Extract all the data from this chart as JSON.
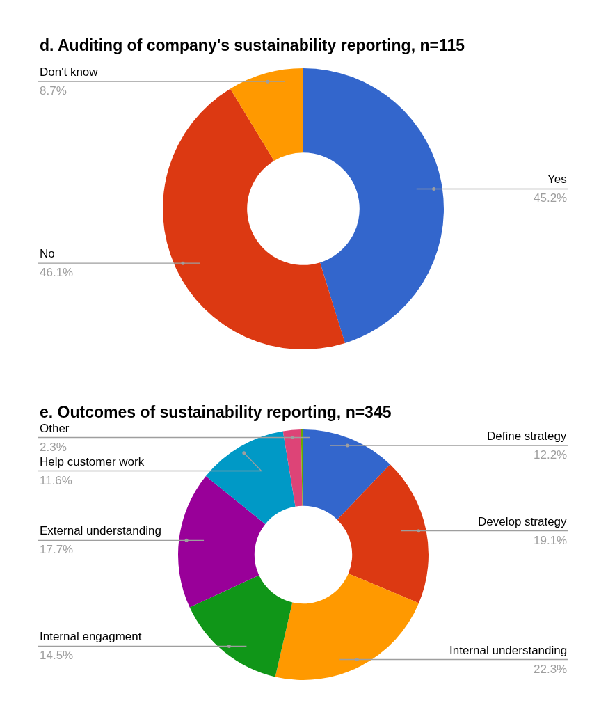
{
  "chart_data": [
    {
      "type": "donut",
      "title": "d. Auditing of company's sustainability reporting, n=115",
      "categories": [
        "Yes",
        "No",
        "Don't know"
      ],
      "values": [
        45.2,
        46.1,
        8.7
      ],
      "value_labels": [
        "45.2%",
        "46.1%",
        "8.7%"
      ],
      "colors": [
        "#3366cc",
        "#dc3912",
        "#ff9900"
      ]
    },
    {
      "type": "donut",
      "title": "e. Outcomes of sustainability reporting, n=345",
      "categories": [
        "Define strategy",
        "Develop strategy",
        "Internal understanding",
        "Internal engagment",
        "External understanding",
        "Help customer work",
        "Other",
        null
      ],
      "values": [
        12.2,
        19.1,
        22.3,
        14.5,
        17.7,
        11.6,
        2.3,
        0.3
      ],
      "value_labels": [
        "12.2%",
        "19.1%",
        "22.3%",
        "14.5%",
        "17.7%",
        "11.6%",
        "2.3%",
        null
      ],
      "colors": [
        "#3366cc",
        "#dc3912",
        "#ff9900",
        "#109618",
        "#990099",
        "#0099c6",
        "#dd4477",
        "#66aa00"
      ]
    }
  ]
}
